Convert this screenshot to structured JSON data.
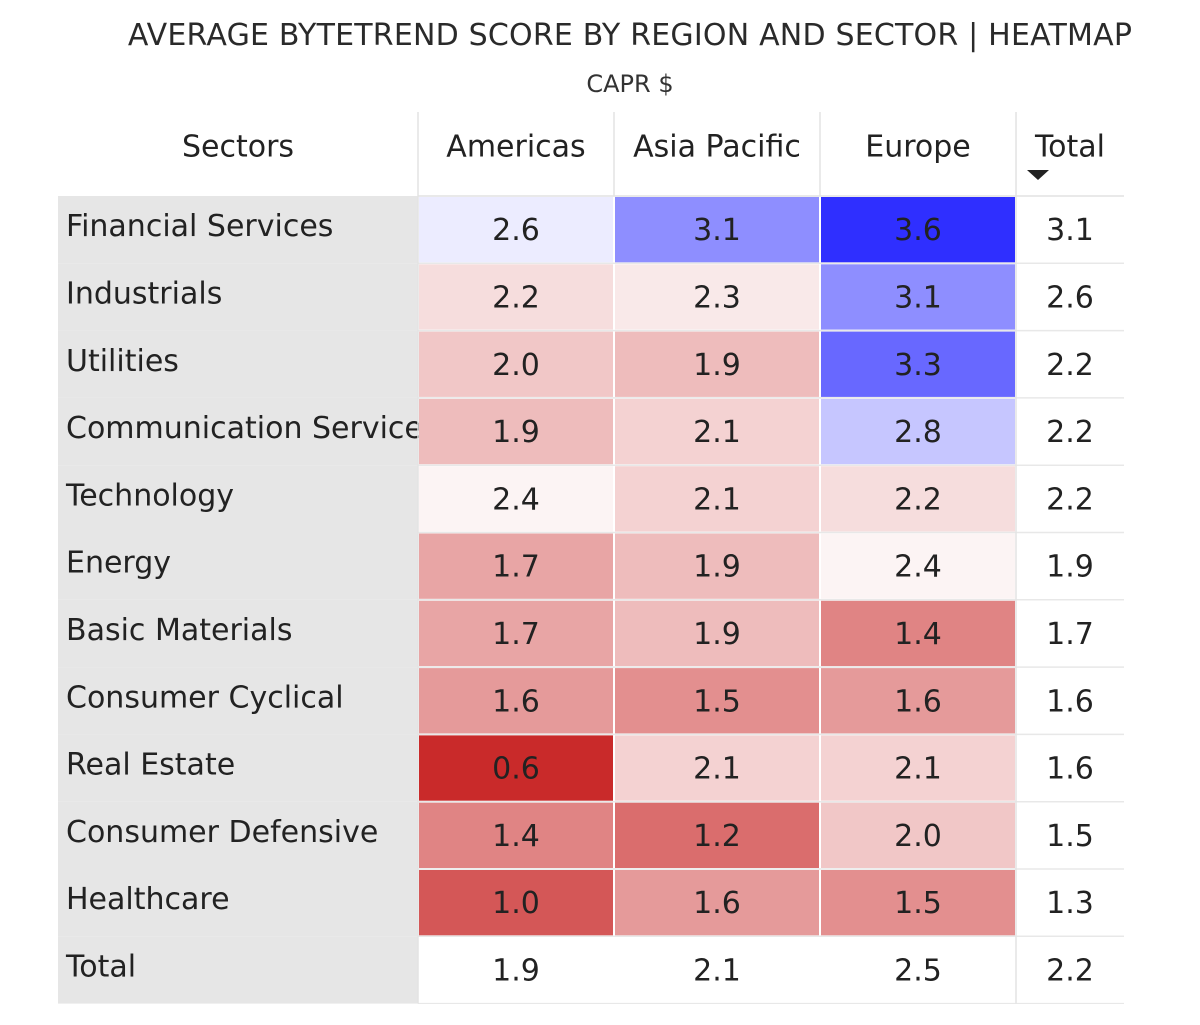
{
  "header": {
    "title": "AVERAGE BYTETREND SCORE BY REGION AND SECTOR | HEATMAP",
    "subtitle": "CAPR $"
  },
  "chart_data": {
    "type": "heatmap",
    "row_header": "Sectors",
    "columns": [
      "Americas",
      "Asia Pacific",
      "Europe",
      "Total"
    ],
    "sort_indicator": "Total",
    "rows": [
      {
        "label": "Financial Services",
        "values": [
          2.6,
          3.1,
          3.6
        ],
        "total": 3.1
      },
      {
        "label": "Industrials",
        "values": [
          2.2,
          2.3,
          3.1
        ],
        "total": 2.6
      },
      {
        "label": "Utilities",
        "values": [
          2.0,
          1.9,
          3.3
        ],
        "total": 2.2
      },
      {
        "label": "Communication Services",
        "values": [
          1.9,
          2.1,
          2.8
        ],
        "total": 2.2
      },
      {
        "label": "Technology",
        "values": [
          2.4,
          2.1,
          2.2
        ],
        "total": 2.2
      },
      {
        "label": "Energy",
        "values": [
          1.7,
          1.9,
          2.4
        ],
        "total": 1.9
      },
      {
        "label": "Basic Materials",
        "values": [
          1.7,
          1.9,
          1.4
        ],
        "total": 1.7
      },
      {
        "label": "Consumer Cyclical",
        "values": [
          1.6,
          1.5,
          1.6
        ],
        "total": 1.6
      },
      {
        "label": "Real Estate",
        "values": [
          0.6,
          2.1,
          2.1
        ],
        "total": 1.6
      },
      {
        "label": "Consumer Defensive",
        "values": [
          1.4,
          1.2,
          2.0
        ],
        "total": 1.5
      },
      {
        "label": "Healthcare",
        "values": [
          1.0,
          1.6,
          1.5
        ],
        "total": 1.3
      }
    ],
    "totals_row": {
      "label": "Total",
      "values": [
        1.9,
        2.1,
        2.5
      ],
      "total": 2.2
    },
    "color_scale": {
      "min": 0.6,
      "mid": 2.5,
      "max": 3.6,
      "min_color": "#c92a2a",
      "mid_color": "#ffffff",
      "max_color": "#2f2fff"
    },
    "row_header_bg": "#e6e6e6",
    "grid_color": "#ffffff"
  }
}
